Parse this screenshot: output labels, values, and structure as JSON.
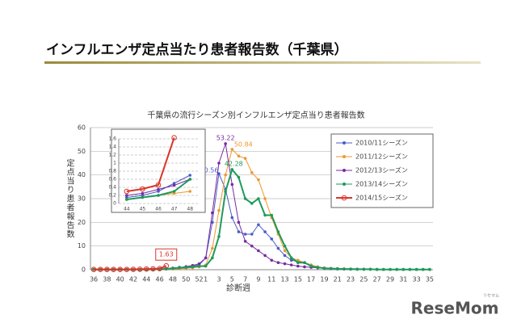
{
  "header": {
    "title": "インフルエンザ定点当たり患者報告数（千葉県）"
  },
  "watermark": "ReseMom",
  "watermark_sub": "リセマム",
  "chart_data": {
    "type": "line",
    "title": "千葉県の流行シーズン別インフルエンザ定点当り患者報告数",
    "x_label": "診断週",
    "y_label": "定点当り患者報告数",
    "categories": [
      36,
      null,
      38,
      null,
      40,
      null,
      42,
      null,
      44,
      null,
      46,
      null,
      48,
      null,
      50,
      null,
      52,
      1,
      null,
      3,
      null,
      5,
      null,
      7,
      null,
      9,
      null,
      11,
      null,
      13,
      null,
      15,
      null,
      17,
      null,
      19,
      null,
      21,
      null,
      23,
      null,
      25,
      null,
      27,
      null,
      29,
      null,
      31,
      null,
      33,
      null,
      35
    ],
    "ylim": [
      0,
      60
    ],
    "yticks": [
      0,
      10,
      20,
      30,
      40,
      50,
      60
    ],
    "grid": true,
    "legend": "upper right",
    "series": [
      {
        "name": "2010/11シーズン",
        "color": "#4a5cc8",
        "values": [
          0.1,
          0.1,
          0.1,
          0.1,
          0.1,
          0.1,
          0.1,
          0.1,
          0.15,
          0.2,
          0.3,
          0.5,
          0.7,
          1,
          1.2,
          1.5,
          2,
          5,
          20,
          40.56,
          34,
          22,
          16,
          15,
          15,
          19,
          16,
          13,
          9,
          6,
          4,
          3.5,
          3,
          2,
          1,
          0.5,
          0.4,
          0.3,
          0.3,
          0.2,
          0.2,
          0.2,
          0.2,
          0.1,
          0.1,
          0.1,
          0.1,
          0.1,
          0.1,
          0.1,
          0.1,
          0.1
        ]
      },
      {
        "name": "2011/12シーズン",
        "color": "#f0962e",
        "values": [
          0.1,
          0.1,
          0.1,
          0.1,
          0.1,
          0.1,
          0.1,
          0.1,
          0.1,
          0.15,
          0.2,
          0.25,
          0.3,
          0.4,
          0.6,
          0.8,
          1.2,
          2,
          9,
          25,
          40,
          50.84,
          48,
          47,
          41,
          38,
          30,
          22,
          15,
          8,
          5,
          4,
          3,
          2,
          1.2,
          0.8,
          0.6,
          0.5,
          0.4,
          0.3,
          0.3,
          0.2,
          0.2,
          0.2,
          0.1,
          0.1,
          0.1,
          0.1,
          0.1,
          0.1,
          0.1,
          0.1
        ]
      },
      {
        "name": "2012/13シーズン",
        "color": "#7a2aa0",
        "values": [
          0.1,
          0.1,
          0.1,
          0.1,
          0.1,
          0.1,
          0.1,
          0.1,
          0.2,
          0.25,
          0.35,
          0.45,
          0.6,
          0.9,
          1.3,
          1.8,
          2.5,
          5,
          24,
          45,
          53.22,
          36,
          20,
          12,
          10,
          8,
          6,
          4,
          3,
          2.5,
          2,
          1.5,
          1.2,
          1,
          0.8,
          0.6,
          0.5,
          0.4,
          0.3,
          0.3,
          0.2,
          0.2,
          0.2,
          0.1,
          0.1,
          0.1,
          0.1,
          0.1,
          0.1,
          0.1,
          0.1,
          0.1
        ]
      },
      {
        "name": "2013/14シーズン",
        "color": "#1e9a5a",
        "values": [
          0.1,
          0.1,
          0.1,
          0.1,
          0.1,
          0.1,
          0.1,
          0.1,
          0.1,
          0.15,
          0.2,
          0.3,
          0.6,
          0.8,
          1,
          1.2,
          1.5,
          1.5,
          5,
          14,
          33,
          42.28,
          39,
          30,
          28,
          30,
          23,
          23,
          16,
          10,
          5,
          3,
          3,
          1.5,
          1,
          0.6,
          0.5,
          0.4,
          0.3,
          0.3,
          0.2,
          0.2,
          0.2,
          0.1,
          0.1,
          0.1,
          0.1,
          0.1,
          0.1,
          0.1,
          0.1,
          0.1
        ]
      },
      {
        "name": "2014/15シーズン",
        "color": "#d9362a",
        "values": [
          0.1,
          0.1,
          0.1,
          0.1,
          0.1,
          0.1,
          0.15,
          0.2,
          0.3,
          0.36,
          0.46,
          1.63,
          null,
          null,
          null,
          null,
          null,
          null,
          null,
          null,
          null,
          null,
          null,
          null,
          null,
          null,
          null,
          null,
          null,
          null,
          null,
          null,
          null,
          null,
          null,
          null,
          null,
          null,
          null,
          null,
          null,
          null,
          null,
          null,
          null,
          null,
          null,
          null,
          null,
          null,
          null,
          null
        ]
      }
    ],
    "inset": {
      "xlim": [
        43.5,
        48.5
      ],
      "xticks": [
        44,
        45,
        46,
        47,
        48
      ],
      "ylim": [
        0,
        1.6
      ],
      "yticks": [
        0,
        0.2,
        0.4,
        0.6,
        0.8,
        1,
        1.2,
        1.4,
        1.6
      ],
      "grid": true
    }
  }
}
